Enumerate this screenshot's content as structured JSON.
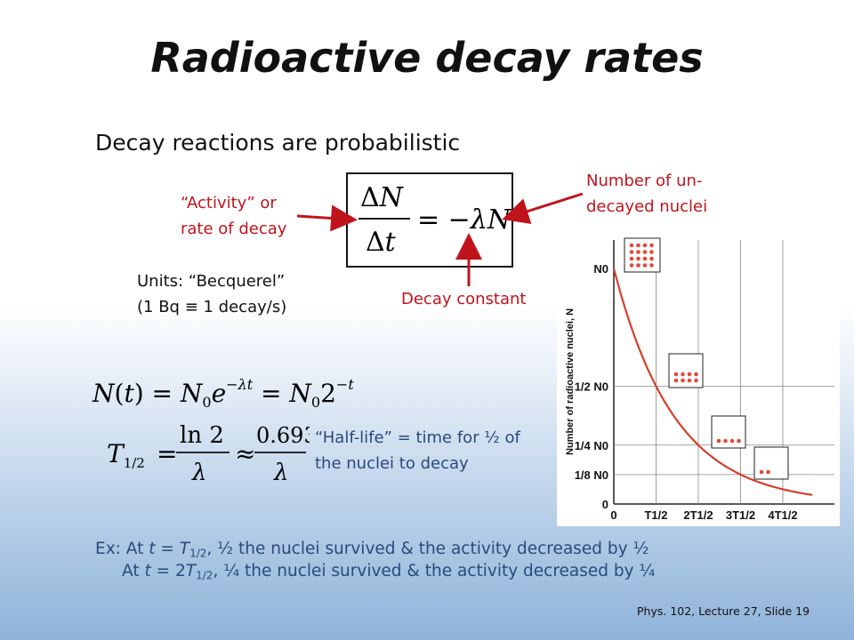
{
  "title": "Radioactive decay rates",
  "subtitle": "Decay reactions are probabilistic",
  "activity_label_line1": "“Activity” or",
  "activity_label_line2": "rate of decay",
  "number_label_line1": "Number of un-",
  "number_label_line2": "decayed nuclei",
  "decay_constant_label": "Decay constant",
  "units_line1": "Units: “Becquerel”",
  "units_line2": "(1 Bq ≡ 1 decay/s)",
  "halflife_line1": "“Half-life” = time for ½ of",
  "halflife_line2": "the nuclei to decay",
  "example": {
    "line1_prefix": "Ex: At ",
    "line1_suffix": ", ½ the nuclei survived & the activity decreased by ½",
    "line2_prefix": "At ",
    "line2_suffix": ", ¼ the nuclei survived & the activity decreased by ¼"
  },
  "footer": "Phys. 102, Lecture 27, Slide 19",
  "colors": {
    "red": "#c0141c",
    "blue": "#2a4a7a",
    "curve": "#d4402a",
    "dots": "#e04a3a"
  },
  "chart_data": {
    "type": "line",
    "ylabel": "Number of radioactive nuclei, N",
    "x_ticks": [
      "0",
      "T1/2",
      "2T1/2",
      "3T1/2",
      "4T1/2"
    ],
    "y_ticks": [
      "0",
      "1/8 N0",
      "1/4 N0",
      "1/2 N0",
      "N0"
    ],
    "x": [
      0,
      1,
      2,
      3,
      4
    ],
    "values": [
      1,
      0.5,
      0.25,
      0.125,
      0.0625
    ],
    "dot_counts": [
      16,
      8,
      4,
      2
    ]
  }
}
